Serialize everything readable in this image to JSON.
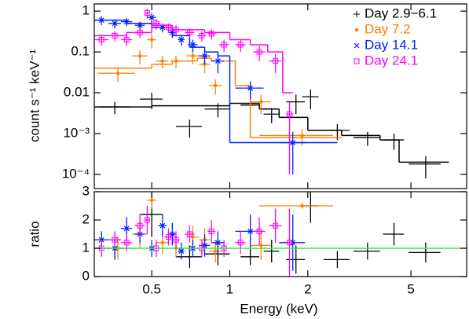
{
  "chart_data": {
    "type": "errorbar",
    "xlabel": "Energy (keV)",
    "ylabel": "count s⁻¹ keV⁻¹",
    "ratio_ylabel": "ratio",
    "xscale": "log",
    "yscale": "log",
    "xlim": [
      0.3,
      8.2
    ],
    "xticks": [
      0.5,
      1,
      2,
      5
    ],
    "ylim": [
      4.5e-05,
      1.5
    ],
    "yticks": [
      1,
      0.1,
      0.01,
      {
        "value": 0.001,
        "label": "10⁻³"
      },
      {
        "value": 0.0001,
        "label": "10⁻⁴"
      }
    ],
    "ratio_ylim": [
      0,
      3
    ],
    "ratio_yticks": [
      0,
      1,
      2,
      3
    ],
    "ratio_ref": 1,
    "ratio_ref_color": "#33ee33",
    "legend": "upper right",
    "series": [
      {
        "name": "Day 2.9−6.1",
        "color": "#000000",
        "marker": "plus",
        "x": [
          0.36,
          0.5,
          0.7,
          0.9,
          1.2,
          1.45,
          1.8,
          2.05,
          2.6,
          3.4,
          4.3,
          5.7
        ],
        "xerr": [
          0.05,
          0.05,
          0.08,
          0.1,
          0.1,
          0.1,
          0.15,
          0.15,
          0.3,
          0.4,
          0.4,
          0.8
        ],
        "y": [
          0.0045,
          0.007,
          0.0015,
          0.004,
          0.005,
          0.003,
          0.006,
          0.008,
          0.0012,
          0.0008,
          0.0007,
          0.00018
        ],
        "yerr": [
          0.0015,
          0.003,
          0.0007,
          0.0015,
          0.002,
          0.0012,
          0.003,
          0.004,
          0.0005,
          0.0003,
          0.0003,
          0.0001
        ],
        "ratio": [
          1.0,
          2.2,
          0.7,
          0.8,
          0.7,
          0.9,
          0.6,
          2.5,
          0.6,
          0.9,
          1.5,
          0.85
        ],
        "ratio_err": [
          0.4,
          0.8,
          0.4,
          0.4,
          0.3,
          0.4,
          0.5,
          0.6,
          0.3,
          0.3,
          0.4,
          0.35
        ],
        "model_edges": [
          0.3,
          0.5,
          1.0,
          1.3,
          1.55,
          2.0,
          2.7,
          3.8,
          4.5,
          6.5,
          7.0
        ],
        "model_values": [
          0.0045,
          0.0048,
          0.0055,
          0.004,
          0.0025,
          0.0012,
          0.0009,
          0.0007,
          0.0002,
          0.0002
        ]
      },
      {
        "name": "Day 7.2",
        "color": "#ff8000",
        "marker": "dot",
        "x": [
          0.37,
          0.45,
          0.5,
          0.55,
          0.62,
          0.72,
          0.8,
          0.88,
          1.32,
          1.9
        ],
        "xerr": [
          0.06,
          0.03,
          0.02,
          0.03,
          0.03,
          0.04,
          0.04,
          0.05,
          0.12,
          0.6
        ],
        "y": [
          0.03,
          0.08,
          0.2,
          0.06,
          0.06,
          0.08,
          0.05,
          0.015,
          0.006,
          0.0009
        ],
        "yerr": [
          0.012,
          0.03,
          0.08,
          0.02,
          0.02,
          0.03,
          0.02,
          0.006,
          0.003,
          0.0004
        ],
        "ratio": [
          1.0,
          1.5,
          2.7,
          1.2,
          1.0,
          1.4,
          1.3,
          0.9,
          1.1,
          2.5
        ],
        "ratio_err": [
          0.4,
          0.5,
          0.3,
          0.4,
          0.3,
          0.4,
          0.4,
          0.4,
          0.5,
          0.1
        ],
        "model_edges": [
          0.3,
          0.5,
          0.6,
          0.75,
          0.85,
          1.05,
          1.2,
          2.7
        ],
        "model_values": [
          0.04,
          0.05,
          0.06,
          0.07,
          0.06,
          0.015,
          0.0008
        ]
      },
      {
        "name": "Day 14.1",
        "color": "#0020ff",
        "marker": "cross",
        "x": [
          0.32,
          0.36,
          0.4,
          0.45,
          0.5,
          0.55,
          0.6,
          0.65,
          0.72,
          0.8,
          0.9,
          1.2,
          1.75
        ],
        "xerr": [
          0.02,
          0.02,
          0.02,
          0.02,
          0.02,
          0.02,
          0.02,
          0.02,
          0.03,
          0.04,
          0.05,
          0.15,
          0.2
        ],
        "y": [
          0.6,
          0.5,
          0.55,
          0.45,
          0.7,
          0.4,
          0.3,
          0.2,
          0.15,
          0.08,
          0.06,
          0.013,
          0.0006
        ],
        "yerr": [
          0.15,
          0.12,
          0.12,
          0.1,
          0.2,
          0.1,
          0.08,
          0.06,
          0.05,
          0.03,
          0.03,
          0.006,
          0.0005
        ],
        "ratio": [
          1.3,
          1.0,
          1.7,
          1.5,
          1.0,
          1.8,
          1.5,
          0.9,
          1.0,
          1.1,
          1.2,
          1.6,
          1.2
        ],
        "ratio_err": [
          0.3,
          0.3,
          0.4,
          0.3,
          0.3,
          0.4,
          0.4,
          0.3,
          0.3,
          0.4,
          0.4,
          0.6,
          1.0
        ],
        "model_edges": [
          0.3,
          0.4,
          0.5,
          0.6,
          0.7,
          0.8,
          0.9,
          1.0,
          2.6
        ],
        "model_values": [
          0.6,
          0.5,
          0.4,
          0.25,
          0.13,
          0.1,
          0.08,
          0.0006
        ]
      },
      {
        "name": "Day 24.1",
        "color": "#ff00ff",
        "marker": "square",
        "x": [
          0.32,
          0.36,
          0.4,
          0.45,
          0.48,
          0.52,
          0.58,
          0.62,
          0.7,
          0.78,
          0.85,
          0.95,
          1.1,
          1.3,
          1.5,
          1.7
        ],
        "xerr": [
          0.02,
          0.02,
          0.02,
          0.02,
          0.01,
          0.02,
          0.02,
          0.02,
          0.03,
          0.03,
          0.03,
          0.04,
          0.05,
          0.07,
          0.08,
          0.05
        ],
        "y": [
          0.2,
          0.25,
          0.2,
          0.3,
          0.9,
          0.5,
          0.4,
          0.35,
          0.3,
          0.25,
          0.28,
          0.15,
          0.15,
          0.1,
          0.06,
          0.003
        ],
        "yerr": [
          0.06,
          0.07,
          0.06,
          0.08,
          0.25,
          0.15,
          0.1,
          0.1,
          0.08,
          0.07,
          0.08,
          0.05,
          0.05,
          0.04,
          0.03,
          0.0029
        ],
        "ratio": [
          1.0,
          1.3,
          1.2,
          1.8,
          2.0,
          1.0,
          1.4,
          1.3,
          1.5,
          1.0,
          1.6,
          1.0,
          1.2,
          1.6,
          1.8,
          1.2
        ],
        "ratio_err": [
          0.3,
          0.3,
          0.3,
          0.4,
          0.5,
          0.3,
          0.3,
          0.3,
          0.3,
          0.3,
          0.4,
          0.3,
          0.4,
          0.5,
          0.6,
          1.2
        ],
        "model_edges": [
          0.3,
          0.4,
          0.5,
          0.6,
          0.8,
          1.0,
          1.2,
          1.4,
          1.6,
          1.75
        ],
        "model_values": [
          0.25,
          0.3,
          0.45,
          0.35,
          0.3,
          0.2,
          0.15,
          0.1,
          0.01
        ]
      }
    ]
  }
}
